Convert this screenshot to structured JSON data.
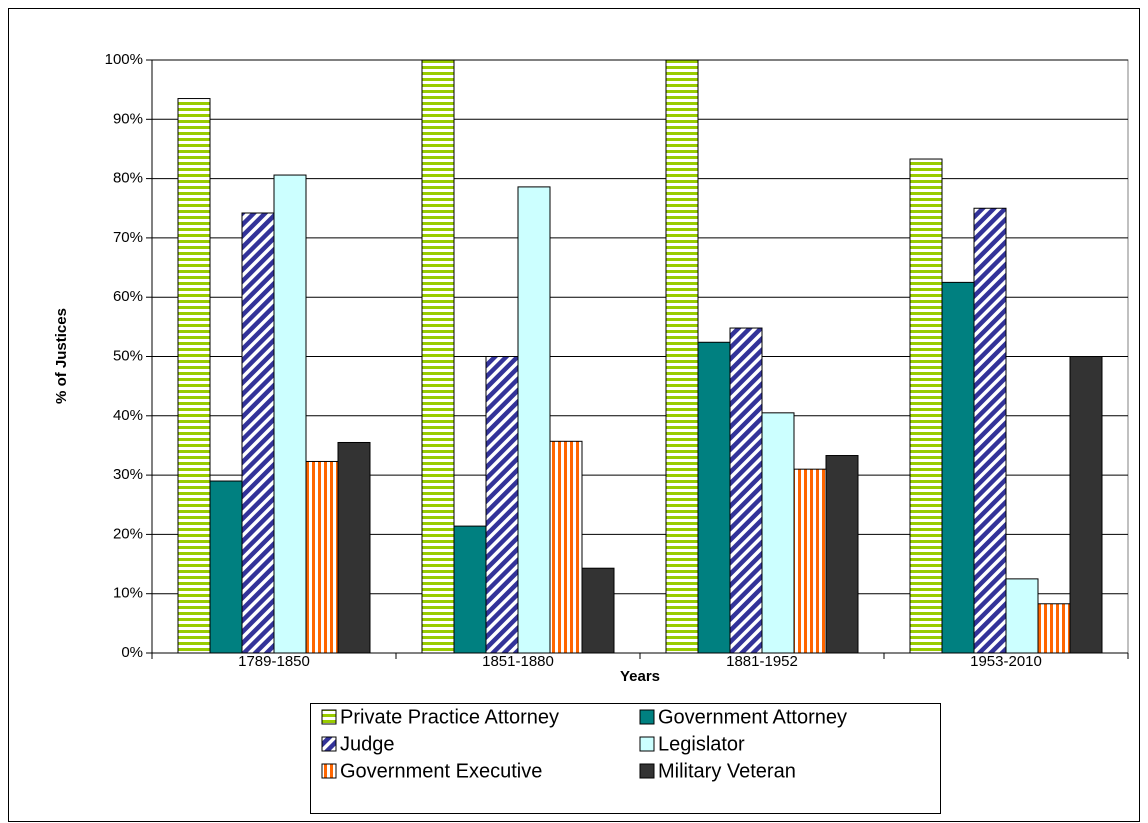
{
  "chart_data": {
    "type": "bar",
    "x_label": "Years",
    "y_label": "% of Justices",
    "categories": [
      "1789-1850",
      "1851-1880",
      "1881-1952",
      "1953-2010"
    ],
    "series": [
      {
        "name": "Private Practice Attorney",
        "color": "#99cc00",
        "pattern": "horizontal-stripes",
        "values": [
          93.5,
          100,
          100,
          83.3
        ]
      },
      {
        "name": "Government Attorney",
        "color": "#008080",
        "pattern": "solid",
        "values": [
          29,
          21.4,
          52.4,
          62.5
        ]
      },
      {
        "name": "Judge",
        "color": "#333399",
        "pattern": "diagonal-stripes",
        "values": [
          74.2,
          50,
          54.8,
          75
        ]
      },
      {
        "name": "Legislator",
        "color": "#ccffff",
        "pattern": "solid",
        "values": [
          80.6,
          78.6,
          40.5,
          12.5
        ]
      },
      {
        "name": "Government Executive",
        "color": "#ff6600",
        "pattern": "vertical-stripes",
        "values": [
          32.3,
          35.7,
          31,
          8.3
        ]
      },
      {
        "name": "Military Veteran",
        "color": "#333333",
        "pattern": "solid",
        "values": [
          35.5,
          14.3,
          33.3,
          50
        ]
      }
    ],
    "ylim": [
      0,
      100
    ],
    "yticks": [
      {
        "value": 0,
        "label": "0%"
      },
      {
        "value": 10,
        "label": "10%"
      },
      {
        "value": 20,
        "label": "20%"
      },
      {
        "value": 30,
        "label": "30%"
      },
      {
        "value": 40,
        "label": "40%"
      },
      {
        "value": 50,
        "label": "50%"
      },
      {
        "value": 60,
        "label": "60%"
      },
      {
        "value": 70,
        "label": "70%"
      },
      {
        "value": 80,
        "label": "80%"
      },
      {
        "value": 90,
        "label": "90%"
      },
      {
        "value": 100,
        "label": "100%"
      }
    ],
    "grid": true,
    "legend": "bottom"
  }
}
